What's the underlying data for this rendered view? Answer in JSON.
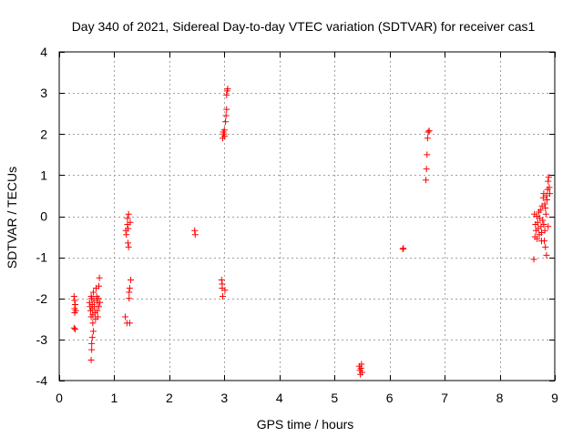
{
  "chart_data": {
    "type": "scatter",
    "title": "Day 340 of 2021, Sidereal Day-to-day VTEC variation (SDTVAR) for receiver cas1",
    "xlabel": "GPS time / hours",
    "ylabel": "SDTVAR / TECUs",
    "xlim": [
      0,
      9
    ],
    "ylim": [
      -4,
      4
    ],
    "xticks": [
      0,
      1,
      2,
      3,
      4,
      5,
      6,
      7,
      8,
      9
    ],
    "yticks": [
      -4,
      -3,
      -2,
      -1,
      0,
      1,
      2,
      3,
      4
    ],
    "grid": true,
    "marker": "+",
    "series": [
      {
        "name": "SDTVAR",
        "color": "#ff0000",
        "points": [
          [
            0.27,
            -1.95
          ],
          [
            0.28,
            -2.05
          ],
          [
            0.28,
            -2.25
          ],
          [
            0.28,
            -2.35
          ],
          [
            0.27,
            -2.72
          ],
          [
            0.29,
            -2.75
          ],
          [
            0.29,
            -2.15
          ],
          [
            0.3,
            -2.3
          ],
          [
            0.55,
            -2.1
          ],
          [
            0.56,
            -2.2
          ],
          [
            0.57,
            -2.3
          ],
          [
            0.58,
            -2.45
          ],
          [
            0.58,
            -1.95
          ],
          [
            0.59,
            -2.0
          ],
          [
            0.6,
            -2.15
          ],
          [
            0.6,
            -2.25
          ],
          [
            0.61,
            -2.4
          ],
          [
            0.61,
            -2.6
          ],
          [
            0.59,
            -3.1
          ],
          [
            0.59,
            -3.25
          ],
          [
            0.58,
            -3.5
          ],
          [
            0.6,
            -2.95
          ],
          [
            0.62,
            -2.8
          ],
          [
            0.62,
            -1.85
          ],
          [
            0.63,
            -2.05
          ],
          [
            0.64,
            -2.2
          ],
          [
            0.65,
            -2.35
          ],
          [
            0.66,
            -2.5
          ],
          [
            0.67,
            -1.75
          ],
          [
            0.68,
            -1.95
          ],
          [
            0.69,
            -2.1
          ],
          [
            0.69,
            -2.3
          ],
          [
            0.7,
            -2.45
          ],
          [
            0.71,
            -2.0
          ],
          [
            0.72,
            -1.7
          ],
          [
            0.73,
            -1.5
          ],
          [
            0.72,
            -2.2
          ],
          [
            0.74,
            -2.1
          ],
          [
            1.2,
            -2.45
          ],
          [
            1.21,
            -0.35
          ],
          [
            1.22,
            -0.45
          ],
          [
            1.23,
            -2.6
          ],
          [
            1.24,
            -0.05
          ],
          [
            1.24,
            -0.2
          ],
          [
            1.25,
            -0.3
          ],
          [
            1.25,
            -0.65
          ],
          [
            1.26,
            0.05
          ],
          [
            1.26,
            -0.75
          ],
          [
            1.27,
            -1.85
          ],
          [
            1.27,
            -2.0
          ],
          [
            1.28,
            -2.6
          ],
          [
            1.28,
            -1.75
          ],
          [
            1.29,
            -0.15
          ],
          [
            1.3,
            -1.55
          ],
          [
            2.46,
            -0.35
          ],
          [
            2.47,
            -0.45
          ],
          [
            2.95,
            -1.55
          ],
          [
            2.96,
            -1.65
          ],
          [
            2.96,
            -1.75
          ],
          [
            2.97,
            -1.95
          ],
          [
            2.97,
            1.9
          ],
          [
            2.98,
            2.05
          ],
          [
            2.99,
            2.0
          ],
          [
            3.0,
            1.95
          ],
          [
            3.0,
            2.1
          ],
          [
            3.01,
            -1.8
          ],
          [
            3.02,
            2.3
          ],
          [
            3.03,
            2.45
          ],
          [
            3.04,
            2.6
          ],
          [
            3.04,
            2.95
          ],
          [
            3.05,
            3.05
          ],
          [
            3.06,
            3.1
          ],
          [
            5.45,
            -3.65
          ],
          [
            5.46,
            -3.75
          ],
          [
            5.47,
            -3.85
          ],
          [
            5.48,
            -3.7
          ],
          [
            5.49,
            -3.6
          ],
          [
            5.5,
            -3.8
          ],
          [
            6.24,
            -0.8
          ],
          [
            6.25,
            -0.78
          ],
          [
            6.66,
            0.88
          ],
          [
            6.67,
            1.15
          ],
          [
            6.68,
            1.5
          ],
          [
            6.69,
            1.9
          ],
          [
            6.7,
            2.05
          ],
          [
            6.72,
            2.08
          ],
          [
            8.62,
            -1.05
          ],
          [
            8.63,
            0.05
          ],
          [
            8.64,
            -0.5
          ],
          [
            8.65,
            -0.2
          ],
          [
            8.66,
            -0.35
          ],
          [
            8.67,
            0.0
          ],
          [
            8.68,
            -0.55
          ],
          [
            8.69,
            -0.15
          ],
          [
            8.7,
            -0.3
          ],
          [
            8.71,
            0.1
          ],
          [
            8.72,
            -0.45
          ],
          [
            8.73,
            -0.05
          ],
          [
            8.74,
            0.15
          ],
          [
            8.75,
            -0.25
          ],
          [
            8.76,
            -0.4
          ],
          [
            8.77,
            0.25
          ],
          [
            8.78,
            -0.1
          ],
          [
            8.79,
            0.45
          ],
          [
            8.8,
            0.55
          ],
          [
            8.81,
            -0.6
          ],
          [
            8.82,
            0.3
          ],
          [
            8.83,
            -0.75
          ],
          [
            8.84,
            0.05
          ],
          [
            8.85,
            -0.95
          ],
          [
            8.86,
            0.4
          ],
          [
            8.87,
            0.65
          ],
          [
            8.88,
            0.85
          ],
          [
            8.89,
            0.95
          ],
          [
            8.85,
            0.5
          ],
          [
            8.83,
            0.2
          ],
          [
            8.8,
            -0.2
          ],
          [
            8.88,
            -0.25
          ],
          [
            8.9,
            0.7
          ],
          [
            8.91,
            0.55
          ],
          [
            8.82,
            -0.35
          ],
          [
            8.76,
            -0.6
          ]
        ]
      }
    ]
  }
}
